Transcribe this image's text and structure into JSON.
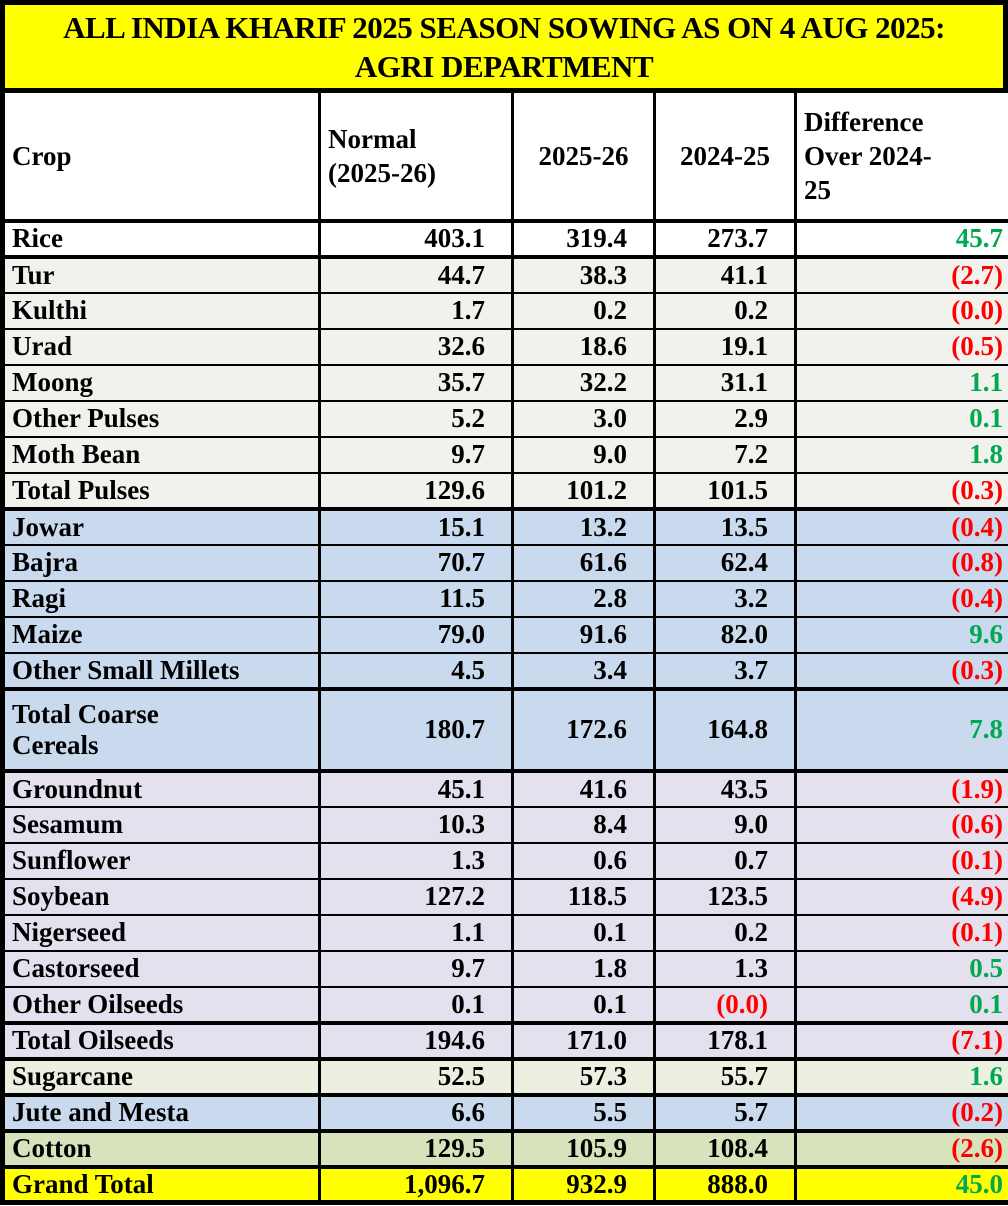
{
  "title": {
    "line1": "ALL INDIA KHARIF 2025 SEASON SOWING AS ON 4 AUG 2025:",
    "line2": "AGRI DEPARTMENT"
  },
  "colors": {
    "title_bg": "#FFFF00",
    "positive": "#00A84F",
    "negative": "#FF0000",
    "border": "#000000",
    "sections": {
      "white": "#FFFFFF",
      "gray": "#F1F1EE",
      "blue": "#C9DAEF",
      "lavender": "#E5E0EE",
      "palegreen": "#EBF0E0",
      "green": "#D7E3BC",
      "yellow": "#FFFF00"
    }
  },
  "table": {
    "header": [
      {
        "key": "crop",
        "lines": [
          "Crop"
        ],
        "align": "left"
      },
      {
        "key": "normal",
        "lines": [
          "Normal",
          "(2025-26)"
        ],
        "align": "left"
      },
      {
        "key": "y2025",
        "lines": [
          "2025-26"
        ],
        "align": "center"
      },
      {
        "key": "y2024",
        "lines": [
          "2024-25"
        ],
        "align": "center"
      },
      {
        "key": "diff",
        "lines": [
          "Difference",
          "Over 2024-",
          "25"
        ],
        "align": "left"
      }
    ],
    "rows": [
      {
        "crop": "Rice",
        "normal": "403.1",
        "y2025": "319.4",
        "y2024": "273.7",
        "diff": "45.7",
        "diff_type": "pos",
        "section": "white",
        "thick_top": true
      },
      {
        "crop": "Tur",
        "normal": "44.7",
        "y2025": "38.3",
        "y2024": "41.1",
        "diff": "(2.7)",
        "diff_type": "neg",
        "section": "gray",
        "thick_top": true
      },
      {
        "crop": "Kulthi",
        "normal": "1.7",
        "y2025": "0.2",
        "y2024": "0.2",
        "diff": "(0.0)",
        "diff_type": "neg",
        "section": "gray"
      },
      {
        "crop": "Urad",
        "normal": "32.6",
        "y2025": "18.6",
        "y2024": "19.1",
        "diff": "(0.5)",
        "diff_type": "neg",
        "section": "gray"
      },
      {
        "crop": "Moong",
        "normal": "35.7",
        "y2025": "32.2",
        "y2024": "31.1",
        "diff": "1.1",
        "diff_type": "pos",
        "section": "gray"
      },
      {
        "crop": "Other Pulses",
        "normal": "5.2",
        "y2025": "3.0",
        "y2024": "2.9",
        "diff": "0.1",
        "diff_type": "pos",
        "section": "gray"
      },
      {
        "crop": "Moth Bean",
        "normal": "9.7",
        "y2025": "9.0",
        "y2024": "7.2",
        "diff": "1.8",
        "diff_type": "pos",
        "section": "gray"
      },
      {
        "crop": "Total Pulses",
        "normal": "129.6",
        "y2025": "101.2",
        "y2024": "101.5",
        "diff": "(0.3)",
        "diff_type": "neg",
        "section": "gray"
      },
      {
        "crop": "Jowar",
        "normal": "15.1",
        "y2025": "13.2",
        "y2024": "13.5",
        "diff": "(0.4)",
        "diff_type": "neg",
        "section": "blue",
        "thick_top": true
      },
      {
        "crop": "Bajra",
        "normal": "70.7",
        "y2025": "61.6",
        "y2024": "62.4",
        "diff": "(0.8)",
        "diff_type": "neg",
        "section": "blue"
      },
      {
        "crop": "Ragi",
        "normal": "11.5",
        "y2025": "2.8",
        "y2024": "3.2",
        "diff": "(0.4)",
        "diff_type": "neg",
        "section": "blue"
      },
      {
        "crop": "Maize",
        "normal": "79.0",
        "y2025": "91.6",
        "y2024": "82.0",
        "diff": "9.6",
        "diff_type": "pos",
        "section": "blue"
      },
      {
        "crop": "Other Small Millets",
        "normal": "4.5",
        "y2025": "3.4",
        "y2024": "3.7",
        "diff": "(0.3)",
        "diff_type": "neg",
        "section": "blue"
      },
      {
        "crop": "Total Coarse Cereals",
        "crop_lines": [
          "Total Coarse",
          "Cereals"
        ],
        "normal": "180.7",
        "y2025": "172.6",
        "y2024": "164.8",
        "diff": "7.8",
        "diff_type": "pos",
        "section": "blue",
        "thick_top": true,
        "tall": true
      },
      {
        "crop": "Groundnut",
        "normal": "45.1",
        "y2025": "41.6",
        "y2024": "43.5",
        "diff": "(1.9)",
        "diff_type": "neg",
        "section": "lavender",
        "thick_top": true
      },
      {
        "crop": "Sesamum",
        "normal": "10.3",
        "y2025": "8.4",
        "y2024": "9.0",
        "diff": "(0.6)",
        "diff_type": "neg",
        "section": "lavender"
      },
      {
        "crop": "Sunflower",
        "normal": "1.3",
        "y2025": "0.6",
        "y2024": "0.7",
        "diff": "(0.1)",
        "diff_type": "neg",
        "section": "lavender"
      },
      {
        "crop": "Soybean",
        "normal": "127.2",
        "y2025": "118.5",
        "y2024": "123.5",
        "diff": "(4.9)",
        "diff_type": "neg",
        "section": "lavender"
      },
      {
        "crop": "Nigerseed",
        "normal": "1.1",
        "y2025": "0.1",
        "y2024": "0.2",
        "diff": "(0.1)",
        "diff_type": "neg",
        "section": "lavender"
      },
      {
        "crop": "Castorseed",
        "normal": "9.7",
        "y2025": "1.8",
        "y2024": "1.3",
        "diff": "0.5",
        "diff_type": "pos",
        "section": "lavender"
      },
      {
        "crop": "Other Oilseeds",
        "normal": "0.1",
        "y2025": "0.1",
        "y2024": "(0.0)",
        "y2024_neg": true,
        "diff": "0.1",
        "diff_type": "pos",
        "section": "lavender"
      },
      {
        "crop": "Total Oilseeds",
        "normal": "194.6",
        "y2025": "171.0",
        "y2024": "178.1",
        "diff": "(7.1)",
        "diff_type": "neg",
        "section": "lavender",
        "thick_top": true
      },
      {
        "crop": "Sugarcane",
        "normal": "52.5",
        "y2025": "57.3",
        "y2024": "55.7",
        "diff": "1.6",
        "diff_type": "pos",
        "section": "palegreen",
        "thick_top": true
      },
      {
        "crop": "Jute and Mesta",
        "normal": "6.6",
        "y2025": "5.5",
        "y2024": "5.7",
        "diff": "(0.2)",
        "diff_type": "neg",
        "section": "blue",
        "thick_top": true
      },
      {
        "crop": "Cotton",
        "normal": "129.5",
        "y2025": "105.9",
        "y2024": "108.4",
        "diff": "(2.6)",
        "diff_type": "neg",
        "section": "green",
        "thick_top": true
      },
      {
        "crop": "Grand Total",
        "normal": "1,096.7",
        "y2025": "932.9",
        "y2024": "888.0",
        "diff": "45.0",
        "diff_type": "pos",
        "section": "yellow",
        "thick_top": true
      }
    ]
  },
  "chart_data": {
    "type": "table",
    "title": "ALL INDIA KHARIF 2025 SEASON SOWING AS ON 4 AUG 2025: AGRI DEPARTMENT",
    "columns": [
      "Crop",
      "Normal (2025-26)",
      "2025-26",
      "2024-25",
      "Difference Over 2024-25"
    ],
    "rows": [
      [
        "Rice",
        403.1,
        319.4,
        273.7,
        45.7
      ],
      [
        "Tur",
        44.7,
        38.3,
        41.1,
        -2.7
      ],
      [
        "Kulthi",
        1.7,
        0.2,
        0.2,
        -0.0
      ],
      [
        "Urad",
        32.6,
        18.6,
        19.1,
        -0.5
      ],
      [
        "Moong",
        35.7,
        32.2,
        31.1,
        1.1
      ],
      [
        "Other Pulses",
        5.2,
        3.0,
        2.9,
        0.1
      ],
      [
        "Moth Bean",
        9.7,
        9.0,
        7.2,
        1.8
      ],
      [
        "Total Pulses",
        129.6,
        101.2,
        101.5,
        -0.3
      ],
      [
        "Jowar",
        15.1,
        13.2,
        13.5,
        -0.4
      ],
      [
        "Bajra",
        70.7,
        61.6,
        62.4,
        -0.8
      ],
      [
        "Ragi",
        11.5,
        2.8,
        3.2,
        -0.4
      ],
      [
        "Maize",
        79.0,
        91.6,
        82.0,
        9.6
      ],
      [
        "Other Small Millets",
        4.5,
        3.4,
        3.7,
        -0.3
      ],
      [
        "Total Coarse Cereals",
        180.7,
        172.6,
        164.8,
        7.8
      ],
      [
        "Groundnut",
        45.1,
        41.6,
        43.5,
        -1.9
      ],
      [
        "Sesamum",
        10.3,
        8.4,
        9.0,
        -0.6
      ],
      [
        "Sunflower",
        1.3,
        0.6,
        0.7,
        -0.1
      ],
      [
        "Soybean",
        127.2,
        118.5,
        123.5,
        -4.9
      ],
      [
        "Nigerseed",
        1.1,
        0.1,
        0.2,
        -0.1
      ],
      [
        "Castorseed",
        9.7,
        1.8,
        1.3,
        0.5
      ],
      [
        "Other Oilseeds",
        0.1,
        0.1,
        -0.0,
        0.1
      ],
      [
        "Total Oilseeds",
        194.6,
        171.0,
        178.1,
        -7.1
      ],
      [
        "Sugarcane",
        52.5,
        57.3,
        55.7,
        1.6
      ],
      [
        "Jute and Mesta",
        6.6,
        5.5,
        5.7,
        -0.2
      ],
      [
        "Cotton",
        129.5,
        105.9,
        108.4,
        -2.6
      ],
      [
        "Grand Total",
        1096.7,
        932.9,
        888.0,
        45.0
      ]
    ]
  }
}
